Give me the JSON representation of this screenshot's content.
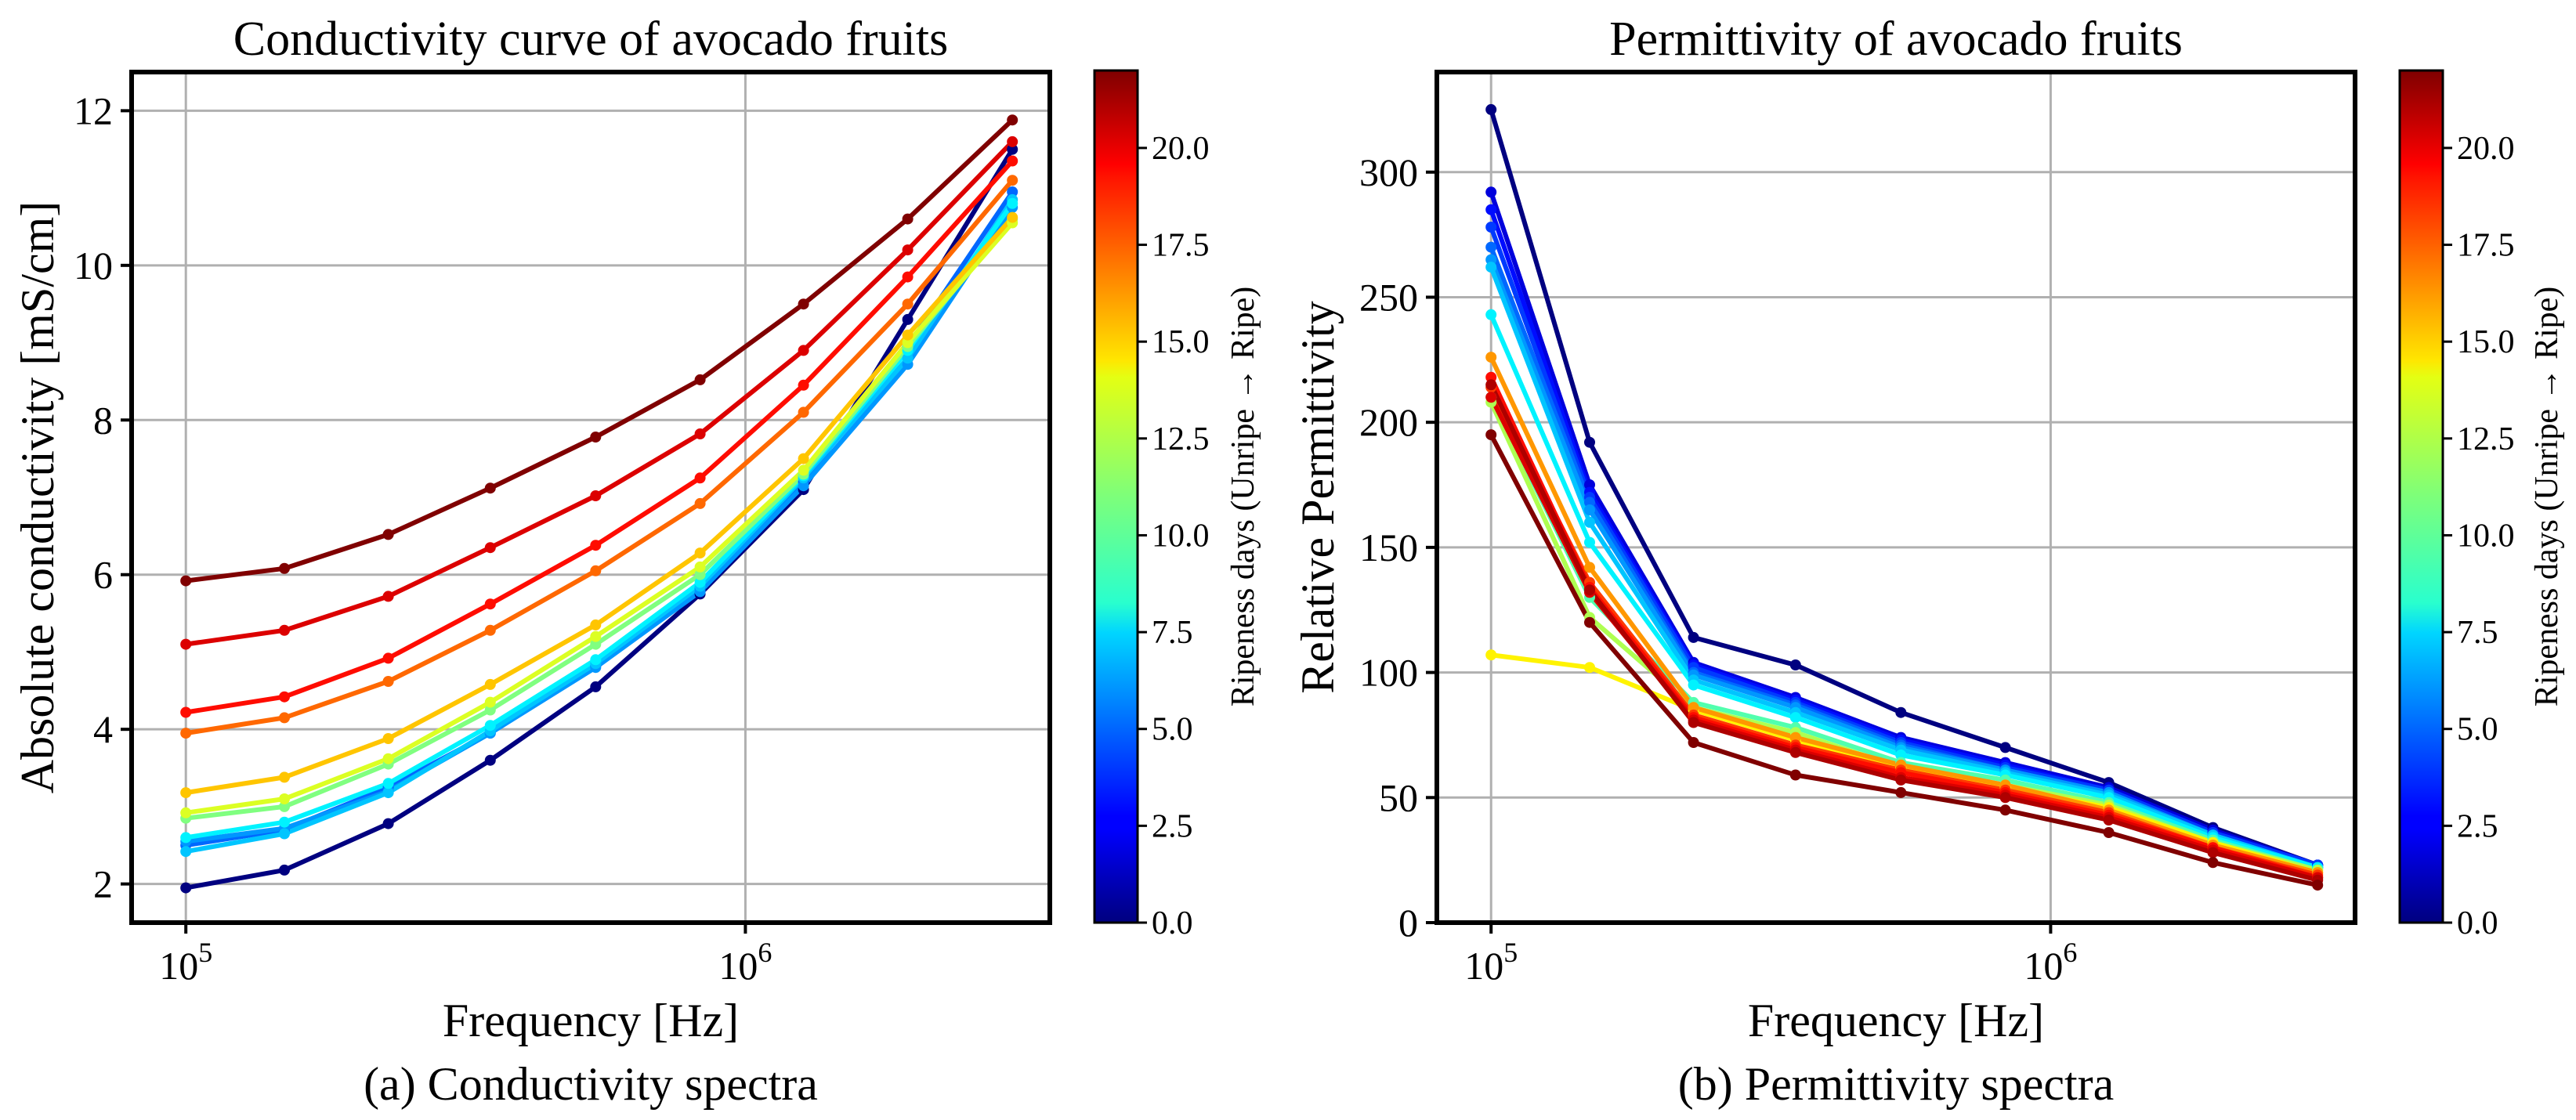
{
  "chart_data": [
    {
      "type": "line",
      "caption": "(a) Conductivity spectra",
      "title": "Conductivity curve of avocado fruits",
      "xlabel": "Frequency [Hz]",
      "ylabel": "Absolute conductivity [mS/cm]",
      "xscale": "log",
      "xlim": [
        80000,
        3500000
      ],
      "ylim": [
        1.5,
        12.5
      ],
      "x_ticks": [
        {
          "value": 100000,
          "base": "10",
          "exp": "5"
        },
        {
          "value": 1000000,
          "base": "10",
          "exp": "6"
        }
      ],
      "y_ticks": [
        2,
        4,
        6,
        8,
        10,
        12
      ],
      "grid": true,
      "x": [
        100000,
        150000,
        230000,
        350000,
        540000,
        830000,
        1270000,
        1950000,
        3000000
      ],
      "colorbar": {
        "label": "Ripeness days (Unripe → Ripe)",
        "range": [
          0,
          22
        ],
        "ticks": [
          "0.0",
          "2.5",
          "5.0",
          "7.5",
          "10.0",
          "12.5",
          "15.0",
          "17.5",
          "20.0"
        ]
      },
      "series": [
        {
          "day": 0,
          "values": [
            1.95,
            2.18,
            2.78,
            3.6,
            4.55,
            5.75,
            7.1,
            9.3,
            11.5
          ]
        },
        {
          "day": 5,
          "values": [
            2.5,
            2.7,
            3.25,
            3.95,
            4.82,
            5.82,
            7.2,
            8.95,
            10.95
          ]
        },
        {
          "day": 6,
          "values": [
            2.55,
            2.72,
            3.2,
            3.95,
            4.8,
            5.78,
            7.15,
            8.72,
            10.75
          ]
        },
        {
          "day": 7,
          "values": [
            2.42,
            2.65,
            3.18,
            3.98,
            4.85,
            5.85,
            7.25,
            8.8,
            10.85
          ]
        },
        {
          "day": 8,
          "values": [
            2.6,
            2.8,
            3.3,
            4.05,
            4.9,
            5.9,
            7.28,
            8.9,
            10.8
          ]
        },
        {
          "day": 11,
          "values": [
            2.85,
            3.0,
            3.55,
            4.25,
            5.1,
            6.0,
            7.3,
            8.95,
            10.6
          ]
        },
        {
          "day": 13,
          "values": [
            2.92,
            3.1,
            3.62,
            4.35,
            5.2,
            6.1,
            7.35,
            9.0,
            10.55
          ]
        },
        {
          "day": 15,
          "values": [
            3.18,
            3.38,
            3.88,
            4.58,
            5.35,
            6.28,
            7.5,
            9.1,
            10.62
          ]
        },
        {
          "day": 17,
          "values": [
            3.95,
            4.15,
            4.62,
            5.28,
            6.05,
            6.92,
            8.1,
            9.5,
            11.1
          ]
        },
        {
          "day": 19,
          "values": [
            4.22,
            4.42,
            4.92,
            5.62,
            6.38,
            7.25,
            8.45,
            9.85,
            11.35
          ]
        },
        {
          "day": 20,
          "values": [
            5.1,
            5.28,
            5.72,
            6.35,
            7.02,
            7.82,
            8.9,
            10.2,
            11.6
          ]
        },
        {
          "day": 22,
          "values": [
            5.92,
            6.08,
            6.52,
            7.12,
            7.78,
            8.52,
            9.5,
            10.6,
            11.88
          ]
        }
      ]
    },
    {
      "type": "line",
      "caption": "(b) Permittivity spectra",
      "title": "Permittivity of avocado fruits",
      "xlabel": "Frequency [Hz]",
      "ylabel": "Relative Permittivity",
      "xscale": "log",
      "xlim": [
        80000,
        3500000
      ],
      "ylim": [
        0,
        340
      ],
      "x_ticks": [
        {
          "value": 100000,
          "base": "10",
          "exp": "5"
        },
        {
          "value": 1000000,
          "base": "10",
          "exp": "6"
        }
      ],
      "y_ticks": [
        0,
        50,
        100,
        150,
        200,
        250,
        300
      ],
      "grid": true,
      "x": [
        100000,
        150000,
        230000,
        350000,
        540000,
        830000,
        1270000,
        1950000,
        3000000
      ],
      "colorbar": {
        "label": "Ripeness days (Unripe → Ripe)",
        "range": [
          0,
          22
        ],
        "ticks": [
          "0.0",
          "2.5",
          "5.0",
          "7.5",
          "10.0",
          "12.5",
          "15.0",
          "17.5",
          "20.0"
        ]
      },
      "series": [
        {
          "day": 0,
          "values": [
            325,
            192,
            114,
            103,
            84,
            70,
            56,
            38,
            23
          ]
        },
        {
          "day": 2,
          "values": [
            292,
            175,
            104,
            90,
            74,
            64,
            54,
            37,
            23
          ]
        },
        {
          "day": 3,
          "values": [
            285,
            172,
            103,
            89,
            73,
            63,
            53,
            36,
            23
          ]
        },
        {
          "day": 4,
          "values": [
            278,
            170,
            102,
            88,
            72,
            62,
            53,
            36,
            23
          ]
        },
        {
          "day": 5,
          "values": [
            270,
            168,
            100,
            87,
            71,
            61,
            52,
            35,
            22
          ]
        },
        {
          "day": 6,
          "values": [
            265,
            165,
            99,
            86,
            70,
            61,
            52,
            35,
            22
          ]
        },
        {
          "day": 7,
          "values": [
            262,
            160,
            97,
            84,
            69,
            60,
            51,
            35,
            22
          ]
        },
        {
          "day": 8,
          "values": [
            243,
            152,
            95,
            82,
            67,
            59,
            50,
            34,
            22
          ]
        },
        {
          "day": 10,
          "values": [
            210,
            130,
            88,
            78,
            64,
            57,
            48,
            33,
            21
          ]
        },
        {
          "day": 12,
          "values": [
            208,
            122,
            86,
            76,
            62,
            55,
            47,
            32,
            21
          ]
        },
        {
          "day": 14,
          "values": [
            107,
            102,
            85,
            73,
            62,
            54,
            46,
            32,
            20
          ]
        },
        {
          "day": 16,
          "values": [
            226,
            142,
            86,
            74,
            63,
            55,
            45,
            31,
            20
          ]
        },
        {
          "day": 18,
          "values": [
            214,
            136,
            83,
            71,
            61,
            53,
            44,
            30,
            19
          ]
        },
        {
          "day": 19,
          "values": [
            218,
            134,
            82,
            70,
            60,
            52,
            43,
            30,
            18
          ]
        },
        {
          "day": 20,
          "values": [
            210,
            132,
            81,
            69,
            58,
            51,
            42,
            29,
            18
          ]
        },
        {
          "day": 21,
          "values": [
            215,
            133,
            80,
            68,
            57,
            50,
            41,
            28,
            17
          ]
        },
        {
          "day": 22,
          "values": [
            195,
            120,
            72,
            59,
            52,
            45,
            36,
            24,
            15
          ]
        }
      ]
    }
  ]
}
